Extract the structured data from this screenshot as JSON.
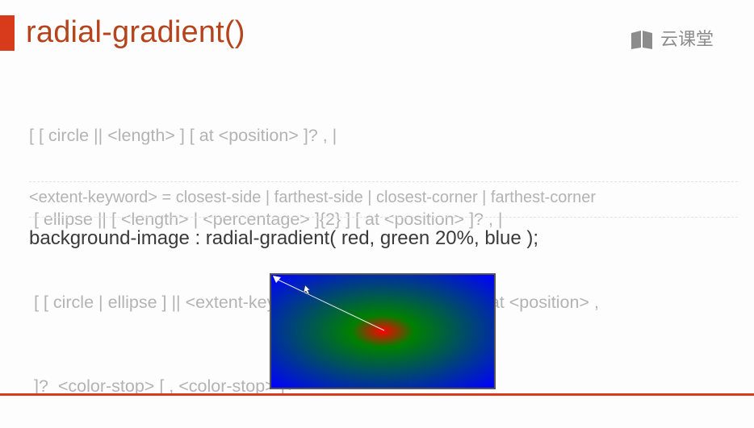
{
  "slide": {
    "title": "radial-gradient()",
    "brand_text": "云课堂",
    "brand_icon": "book-icon",
    "accent_color": "#d83a1c",
    "title_color": "#b5441c"
  },
  "syntax": {
    "lines": [
      "[ [ circle || <length> ] [ at <position> ]? , |",
      " [ ellipse || [ <length> | <percentage> ]{2} ] [ at <position> ]? , |",
      " [ [ circle | ellipse ] || <extent-keyword> ] [ at <position> ]? , | at <position> ,",
      " ]?  <color-stop> [ , <color-stop> ]+"
    ],
    "extent_keyword_line": "<extent-keyword> = closest-side | farthest-side | closest-corner | farthest-corner"
  },
  "example": {
    "code": "background-image : radial-gradient( red, green 20%, blue );",
    "gradient_colors": [
      "red",
      "green",
      "blue"
    ]
  }
}
